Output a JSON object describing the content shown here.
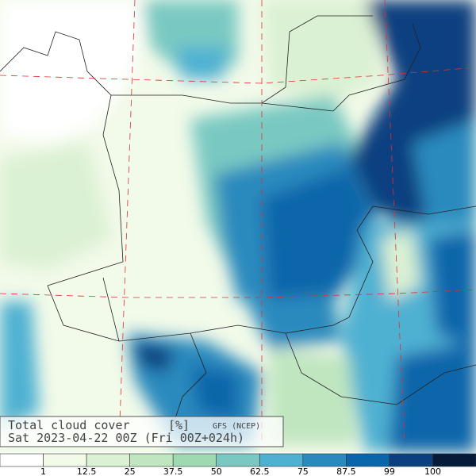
{
  "title": "Total cloud cover",
  "unit": "[%]",
  "model": "GFS (NCEP)",
  "valid_time": "Sat 2023-04-22 00Z (Fri 00Z+024h)",
  "legend": {
    "bins": [
      1,
      12.5,
      25,
      37.5,
      50,
      62.5,
      75,
      87.5,
      99,
      100
    ],
    "colors": [
      "#ffffff",
      "#f2fae9",
      "#dbf1d3",
      "#bfe6bf",
      "#9fd9b2",
      "#79c9c2",
      "#4fb1d2",
      "#2a8abd",
      "#0a66aa",
      "#0a4080",
      "#061a3a"
    ]
  }
}
